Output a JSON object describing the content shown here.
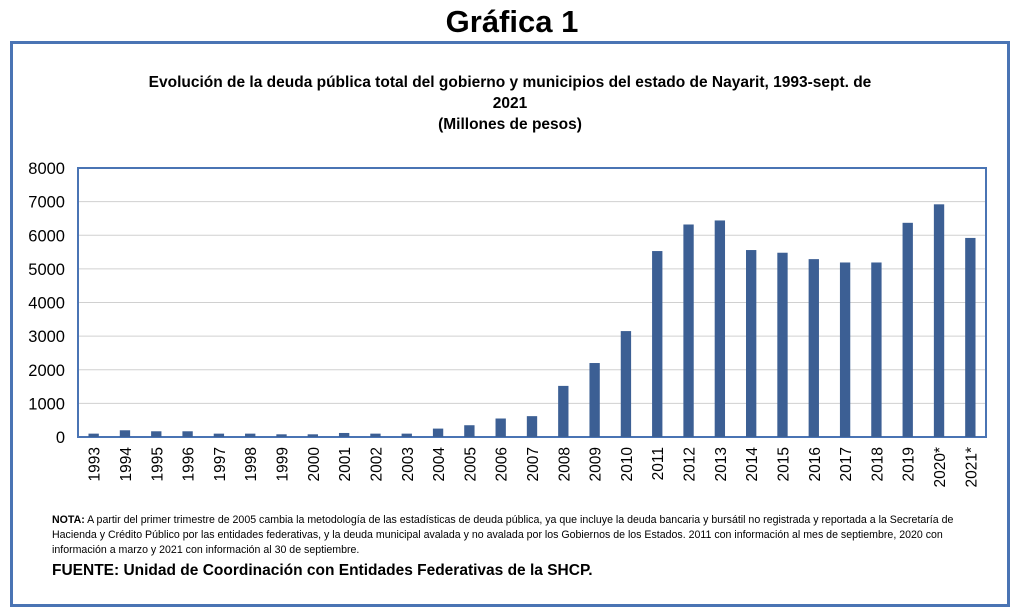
{
  "heading": "Gráfica 1",
  "chart_data": {
    "type": "bar",
    "title_line1": "Evolución de la deuda pública total del gobierno y municipios del estado de Nayarit, 1993-sept. de",
    "title_line2": "2021",
    "title_line3": "(Millones de pesos)",
    "categories": [
      "1993",
      "1994",
      "1995",
      "1996",
      "1997",
      "1998",
      "1999",
      "2000",
      "2001",
      "2002",
      "2003",
      "2004",
      "2005",
      "2006",
      "2007",
      "2008",
      "2009",
      "2010",
      "2011",
      "2012",
      "2013",
      "2014",
      "2015",
      "2016",
      "2017",
      "2018",
      "2019",
      "2020*",
      "2021*"
    ],
    "values": [
      100,
      200,
      170,
      170,
      100,
      100,
      80,
      80,
      120,
      100,
      100,
      250,
      350,
      550,
      620,
      1520,
      2200,
      3150,
      5530,
      6320,
      6440,
      5560,
      5480,
      5290,
      5190,
      5190,
      6370,
      6920,
      5920
    ],
    "yticks": [
      0,
      1000,
      2000,
      3000,
      4000,
      5000,
      6000,
      7000,
      8000
    ],
    "ylim": [
      0,
      8000
    ],
    "grid": true,
    "bar_color": "#3c5f94"
  },
  "note_label": "NOTA:",
  "note_text": " A partir del primer trimestre de 2005 cambia la metodología de las estadísticas de deuda pública, ya que incluye la deuda bancaria y bursátil no registrada y reportada a la Secretaría de Hacienda y Crédito Público por las entidades federativas, y la deuda municipal avalada y no avalada por los Gobiernos de los Estados. 2011 con información al mes de septiembre, 2020 con información a marzo y 2021 con información al 30 de septiembre.",
  "source": "FUENTE: Unidad de Coordinación con Entidades Federativas de la SHCP."
}
